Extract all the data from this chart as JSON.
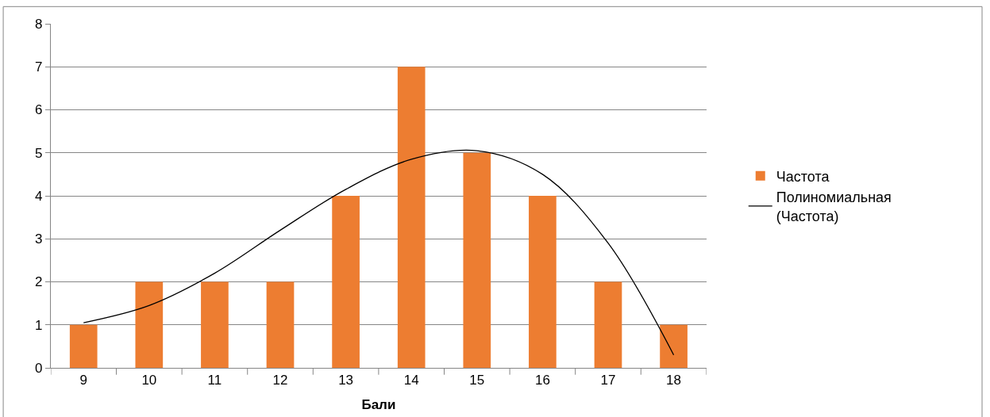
{
  "chart_data": {
    "type": "bar",
    "xlabel": "Бали",
    "categories": [
      "9",
      "10",
      "11",
      "12",
      "13",
      "14",
      "15",
      "16",
      "17",
      "18"
    ],
    "series": [
      {
        "name": "Частота",
        "color": "#ed7d31",
        "values": [
          1,
          2,
          2,
          2,
          4,
          7,
          5,
          4,
          2,
          1
        ]
      },
      {
        "name": "Полиномиальная (Частота)",
        "type": "line",
        "color": "#000000",
        "values": [
          1.05,
          1.45,
          2.2,
          3.2,
          4.15,
          4.85,
          5.05,
          4.5,
          2.9,
          0.3
        ]
      }
    ],
    "ylim": [
      0,
      8
    ],
    "yticks": [
      0,
      1,
      2,
      3,
      4,
      5,
      6,
      7,
      8
    ],
    "grid": "y",
    "legend": "right"
  }
}
